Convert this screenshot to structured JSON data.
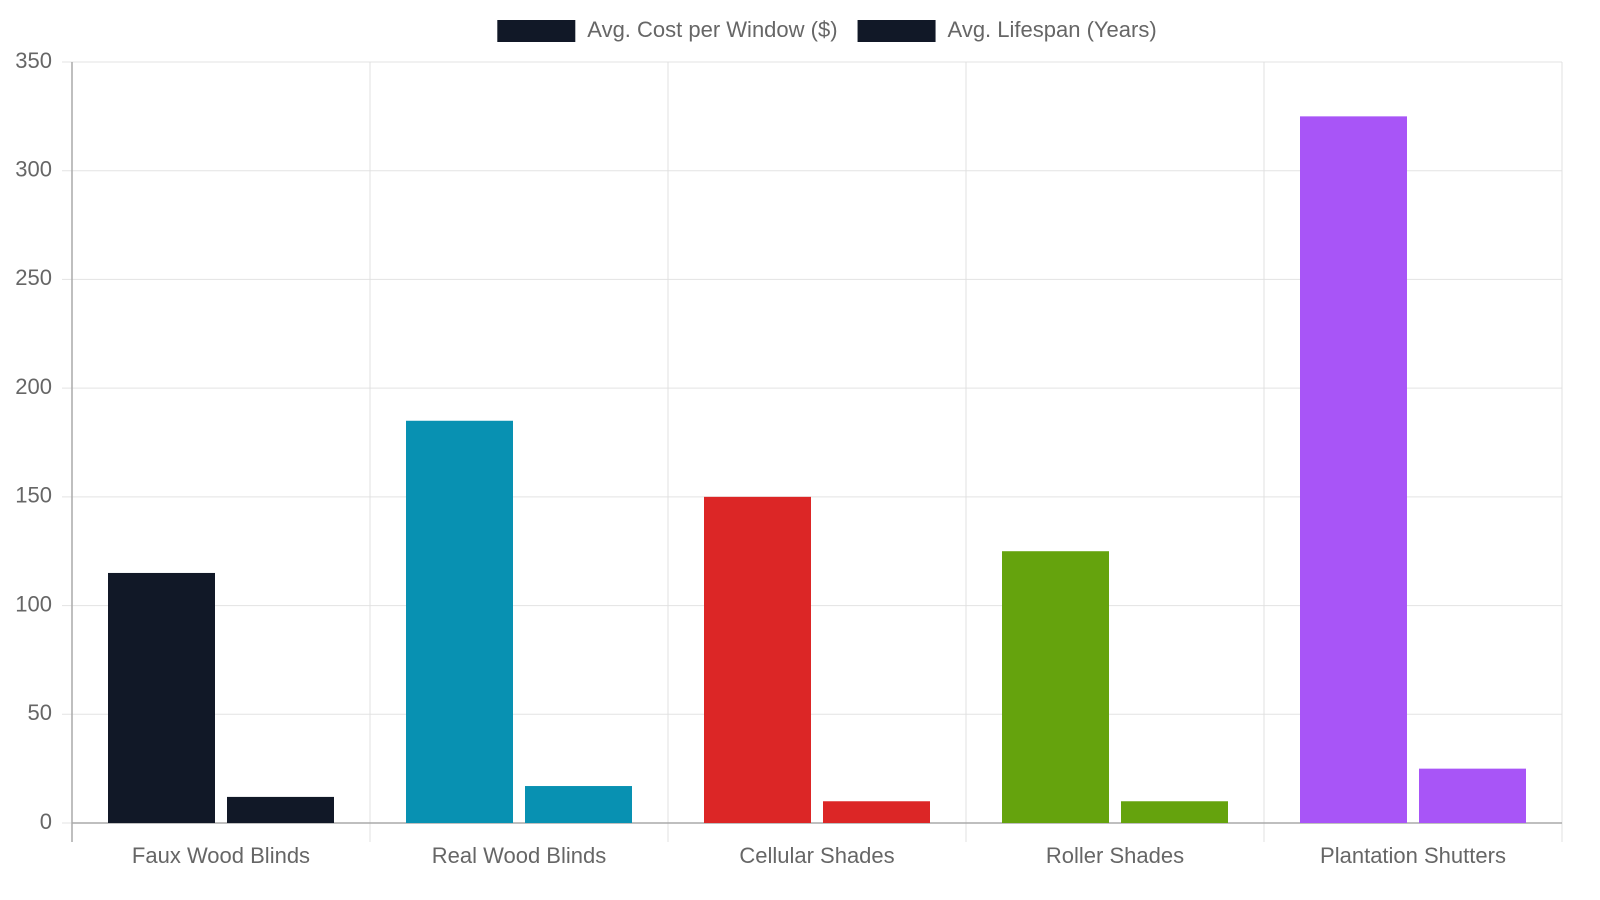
{
  "chart_data": {
    "type": "bar",
    "categories": [
      "Faux Wood Blinds",
      "Real Wood Blinds",
      "Cellular Shades",
      "Roller Shades",
      "Plantation Shutters"
    ],
    "series": [
      {
        "name": "Avg. Cost per Window ($)",
        "color": "#111827",
        "colors": [
          "#111827",
          "#0891b2",
          "#dc2626",
          "#65a30d",
          "#a855f7"
        ],
        "values": [
          115,
          185,
          150,
          125,
          325
        ]
      },
      {
        "name": "Avg. Lifespan (Years)",
        "color": "#111827",
        "colors": [
          "#111827",
          "#0891b2",
          "#dc2626",
          "#65a30d",
          "#a855f7"
        ],
        "values": [
          12,
          17,
          10,
          10,
          25
        ]
      }
    ],
    "ylim": [
      0,
      350
    ],
    "yticks": [
      0,
      50,
      100,
      150,
      200,
      250,
      300,
      350
    ],
    "grid": true,
    "legend": "top"
  }
}
